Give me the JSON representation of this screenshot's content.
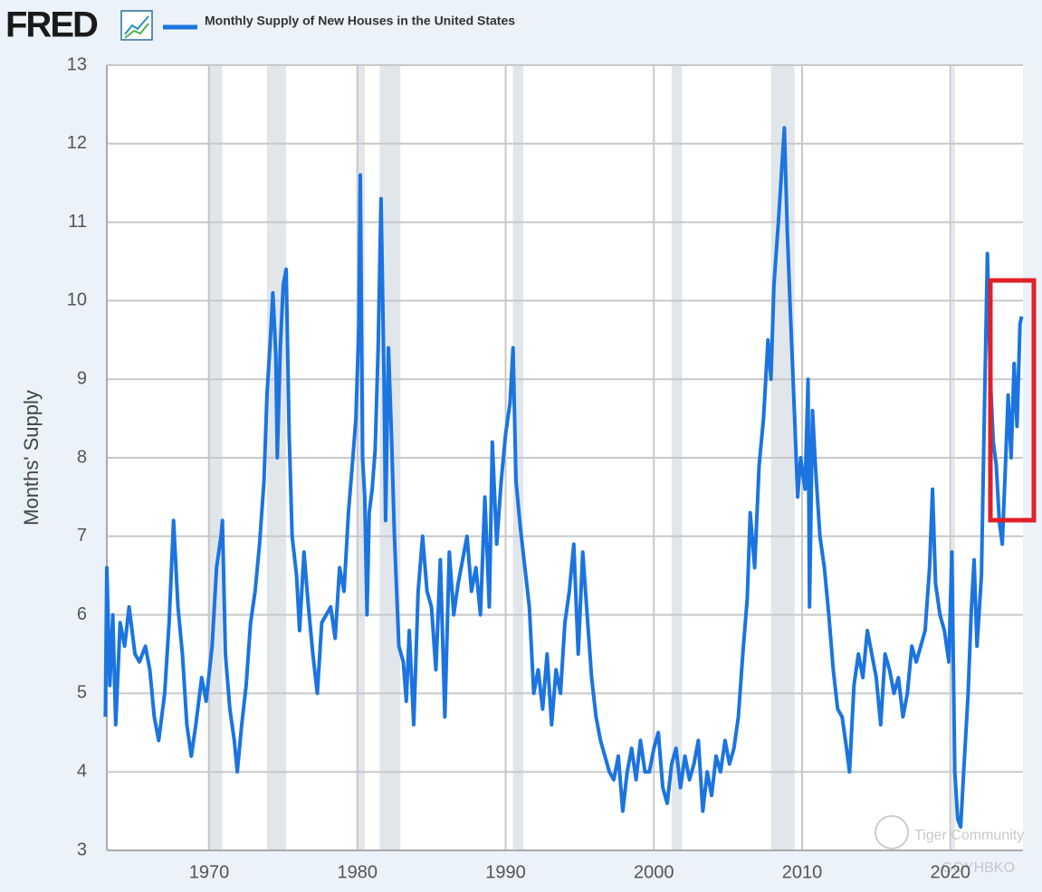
{
  "chart_data": {
    "type": "line",
    "logo": "FRED",
    "ylabel": "Months' Supply",
    "watermark": [
      "Tiger Community",
      "GOYHBKO"
    ],
    "xlim": [
      1963.1,
      2024.9
    ],
    "ylim": [
      3,
      13
    ],
    "xticks": [
      1970,
      1980,
      1990,
      2000,
      2010,
      2020
    ],
    "yticks": [
      3,
      4,
      5,
      6,
      7,
      8,
      9,
      10,
      11,
      12,
      13
    ],
    "grid": true,
    "recessions": [
      [
        1969.9,
        1970.9
      ],
      [
        1973.9,
        1975.2
      ],
      [
        1980.0,
        1980.5
      ],
      [
        1981.5,
        1982.9
      ],
      [
        1990.5,
        1991.2
      ],
      [
        2001.2,
        2001.9
      ],
      [
        2007.9,
        2009.5
      ],
      [
        2020.1,
        2020.3
      ]
    ],
    "x": [
      1963.0,
      1963.1,
      1963.3,
      1963.5,
      1963.7,
      1964.0,
      1964.3,
      1964.6,
      1965.0,
      1965.3,
      1965.7,
      1966.0,
      1966.3,
      1966.6,
      1967.0,
      1967.3,
      1967.6,
      1967.9,
      1968.2,
      1968.5,
      1968.8,
      1969.1,
      1969.5,
      1969.8,
      1970.2,
      1970.5,
      1970.8,
      1970.9,
      1971.1,
      1971.4,
      1971.7,
      1971.9,
      1972.2,
      1972.5,
      1972.8,
      1973.1,
      1973.4,
      1973.7,
      1973.9,
      1974.1,
      1974.3,
      1974.5,
      1974.6,
      1974.8,
      1975.0,
      1975.2,
      1975.4,
      1975.6,
      1975.9,
      1976.1,
      1976.4,
      1976.7,
      1977.0,
      1977.3,
      1977.6,
      1977.9,
      1978.2,
      1978.5,
      1978.8,
      1979.1,
      1979.4,
      1979.7,
      1979.9,
      1980.1,
      1980.2,
      1980.35,
      1980.5,
      1980.65,
      1980.8,
      1981.0,
      1981.2,
      1981.4,
      1981.6,
      1981.8,
      1981.9,
      1982.1,
      1982.3,
      1982.5,
      1982.8,
      1983.1,
      1983.3,
      1983.5,
      1983.8,
      1984.1,
      1984.4,
      1984.7,
      1985.0,
      1985.3,
      1985.6,
      1985.9,
      1986.2,
      1986.5,
      1986.8,
      1987.1,
      1987.4,
      1987.7,
      1988.0,
      1988.3,
      1988.6,
      1988.9,
      1989.1,
      1989.4,
      1989.7,
      1990.0,
      1990.3,
      1990.5,
      1990.7,
      1991.0,
      1991.3,
      1991.6,
      1991.9,
      1992.2,
      1992.5,
      1992.8,
      1993.1,
      1993.4,
      1993.7,
      1994.0,
      1994.3,
      1994.6,
      1994.9,
      1995.2,
      1995.5,
      1995.8,
      1996.1,
      1996.4,
      1996.7,
      1997.0,
      1997.3,
      1997.6,
      1997.9,
      1998.2,
      1998.5,
      1998.8,
      1999.1,
      1999.4,
      1999.7,
      2000.0,
      2000.3,
      2000.6,
      2000.9,
      2001.2,
      2001.5,
      2001.8,
      2002.1,
      2002.4,
      2002.7,
      2003.0,
      2003.3,
      2003.6,
      2003.9,
      2004.2,
      2004.5,
      2004.8,
      2005.1,
      2005.4,
      2005.7,
      2006.0,
      2006.3,
      2006.5,
      2006.8,
      2007.1,
      2007.4,
      2007.7,
      2007.9,
      2008.1,
      2008.4,
      2008.6,
      2008.8,
      2009.0,
      2009.2,
      2009.5,
      2009.7,
      2009.9,
      2010.2,
      2010.4,
      2010.5,
      2010.7,
      2010.9,
      2011.2,
      2011.5,
      2011.8,
      2012.1,
      2012.4,
      2012.7,
      2013.0,
      2013.2,
      2013.5,
      2013.8,
      2014.1,
      2014.4,
      2014.7,
      2015.0,
      2015.3,
      2015.6,
      2015.9,
      2016.2,
      2016.5,
      2016.8,
      2017.1,
      2017.4,
      2017.7,
      2018.0,
      2018.3,
      2018.6,
      2018.8,
      2019.0,
      2019.3,
      2019.6,
      2019.9,
      2020.1,
      2020.3,
      2020.5,
      2020.7,
      2020.9,
      2021.2,
      2021.4,
      2021.6,
      2021.8,
      2022.1,
      2022.3,
      2022.5,
      2022.7,
      2022.9,
      2023.1,
      2023.3,
      2023.5,
      2023.7,
      2023.9,
      2024.1,
      2024.3,
      2024.5,
      2024.7,
      2024.8
    ],
    "series": [
      {
        "name": "Monthly Supply of New Houses in the United States",
        "color": "#1b74e0",
        "values": [
          4.7,
          6.6,
          5.1,
          6.0,
          4.6,
          5.9,
          5.6,
          6.1,
          5.5,
          5.4,
          5.6,
          5.3,
          4.7,
          4.4,
          5.0,
          5.9,
          7.2,
          6.1,
          5.5,
          4.6,
          4.2,
          4.6,
          5.2,
          4.9,
          5.6,
          6.6,
          7.0,
          7.2,
          5.5,
          4.8,
          4.4,
          4.0,
          4.6,
          5.1,
          5.9,
          6.3,
          6.9,
          7.7,
          8.8,
          9.4,
          10.1,
          9.3,
          8.0,
          9.4,
          10.2,
          10.4,
          8.3,
          7.0,
          6.5,
          5.8,
          6.8,
          6.1,
          5.5,
          5.0,
          5.9,
          6.0,
          6.1,
          5.7,
          6.6,
          6.3,
          7.3,
          8.0,
          8.5,
          9.7,
          11.6,
          8.0,
          7.5,
          6.0,
          7.3,
          7.6,
          8.1,
          9.4,
          11.3,
          9.0,
          7.2,
          9.4,
          8.3,
          7.0,
          5.6,
          5.4,
          4.9,
          5.8,
          4.6,
          6.3,
          7.0,
          6.3,
          6.1,
          5.3,
          6.7,
          4.7,
          6.8,
          6.0,
          6.4,
          6.7,
          7.0,
          6.3,
          6.6,
          6.0,
          7.5,
          6.1,
          8.2,
          6.9,
          7.7,
          8.3,
          8.7,
          9.4,
          7.7,
          7.1,
          6.6,
          6.1,
          5.0,
          5.3,
          4.8,
          5.5,
          4.6,
          5.3,
          5.0,
          5.9,
          6.3,
          6.9,
          5.5,
          6.8,
          6.0,
          5.2,
          4.7,
          4.4,
          4.2,
          4.0,
          3.9,
          4.2,
          3.5,
          4.0,
          4.3,
          3.9,
          4.4,
          4.0,
          4.0,
          4.3,
          4.5,
          3.8,
          3.6,
          4.1,
          4.3,
          3.8,
          4.2,
          3.9,
          4.1,
          4.4,
          3.5,
          4.0,
          3.7,
          4.2,
          4.0,
          4.4,
          4.1,
          4.3,
          4.7,
          5.5,
          6.2,
          7.3,
          6.6,
          7.9,
          8.5,
          9.5,
          9.0,
          10.2,
          11.0,
          11.6,
          12.2,
          10.9,
          9.9,
          8.5,
          7.5,
          8.0,
          7.6,
          9.0,
          6.1,
          8.6,
          7.9,
          7.0,
          6.6,
          6.0,
          5.3,
          4.8,
          4.7,
          4.3,
          4.0,
          5.1,
          5.5,
          5.2,
          5.8,
          5.5,
          5.2,
          4.6,
          5.5,
          5.3,
          5.0,
          5.2,
          4.7,
          5.0,
          5.6,
          5.4,
          5.6,
          5.8,
          6.6,
          7.6,
          6.4,
          6.0,
          5.8,
          5.4,
          6.8,
          4.0,
          3.4,
          3.3,
          4.0,
          5.0,
          6.0,
          6.7,
          5.6,
          6.5,
          8.6,
          10.6,
          9.0,
          8.2,
          7.9,
          7.2,
          6.9,
          7.8,
          8.8,
          8.0,
          9.2,
          8.4,
          9.7,
          9.8
        ]
      }
    ]
  }
}
